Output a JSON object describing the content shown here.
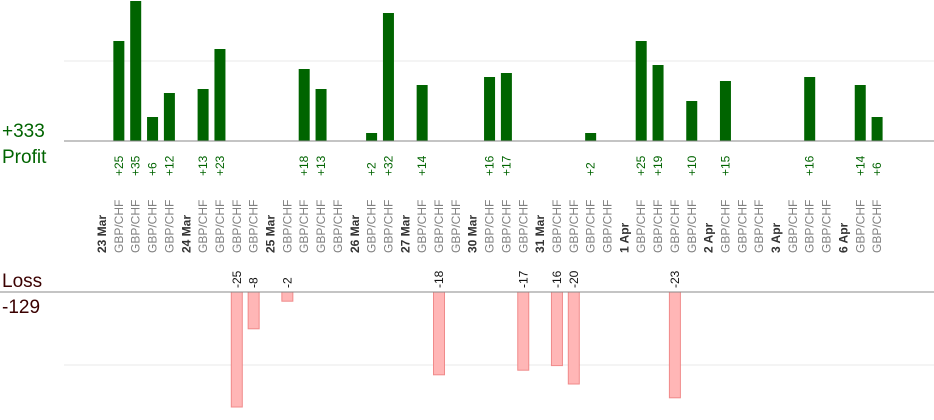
{
  "summary": {
    "profit_total": "+333",
    "profit_label": "Profit",
    "loss_label": "Loss",
    "loss_total": "-129"
  },
  "colors": {
    "profit_bar": "#006400",
    "loss_bar": "#ffb6b6",
    "profit_text": "#006400",
    "loss_text": "#3a0000",
    "axis": "#888888",
    "grid": "#e8e8e8"
  },
  "chart_data": {
    "type": "bar",
    "x": [
      "23 Mar",
      "GBP/CHF",
      "GBP/CHF",
      "GBP/CHF",
      "GBP/CHF",
      "24 Mar",
      "GBP/CHF",
      "GBP/CHF",
      "GBP/CHF",
      "GBP/CHF",
      "25 Mar",
      "GBP/CHF",
      "GBP/CHF",
      "GBP/CHF",
      "GBP/CHF",
      "26 Mar",
      "GBP/CHF",
      "GBP/CHF",
      "27 Mar",
      "GBP/CHF",
      "GBP/CHF",
      "GBP/CHF",
      "30 Mar",
      "GBP/CHF",
      "GBP/CHF",
      "GBP/CHF",
      "31 Mar",
      "GBP/CHF",
      "GBP/CHF",
      "GBP/CHF",
      "GBP/CHF",
      "1 Apr",
      "GBP/CHF",
      "GBP/CHF",
      "GBP/CHF",
      "GBP/CHF",
      "2 Apr",
      "GBP/CHF",
      "GBP/CHF",
      "GBP/CHF",
      "3 Apr",
      "GBP/CHF",
      "GBP/CHF",
      "GBP/CHF",
      "6 Apr",
      "GBP/CHF",
      "GBP/CHF"
    ],
    "kind": [
      "day",
      "ticket",
      "ticket",
      "ticket",
      "ticket",
      "day",
      "ticket",
      "ticket",
      "ticket",
      "ticket",
      "day",
      "ticket",
      "ticket",
      "ticket",
      "ticket",
      "day",
      "ticket",
      "ticket",
      "day",
      "ticket",
      "ticket",
      "ticket",
      "day",
      "ticket",
      "ticket",
      "ticket",
      "day",
      "ticket",
      "ticket",
      "ticket",
      "ticket",
      "day",
      "ticket",
      "ticket",
      "ticket",
      "ticket",
      "day",
      "ticket",
      "ticket",
      "ticket",
      "day",
      "ticket",
      "ticket",
      "ticket",
      "day",
      "ticket",
      "ticket"
    ],
    "series": [
      {
        "values": [
          null,
          25,
          35,
          6,
          12,
          null,
          13,
          23,
          null,
          null,
          null,
          null,
          18,
          13,
          null,
          null,
          2,
          32,
          null,
          14,
          null,
          null,
          null,
          16,
          17,
          null,
          null,
          null,
          null,
          2,
          null,
          null,
          25,
          19,
          null,
          10,
          null,
          15,
          null,
          null,
          null,
          null,
          16,
          null,
          null,
          14,
          6
        ]
      },
      {
        "values": [
          null,
          null,
          null,
          null,
          null,
          null,
          null,
          null,
          -25,
          -8,
          null,
          -2,
          null,
          null,
          null,
          null,
          null,
          null,
          null,
          null,
          -18,
          null,
          null,
          null,
          null,
          -17,
          null,
          -16,
          -20,
          null,
          null,
          null,
          null,
          null,
          -23,
          null,
          null,
          null,
          null,
          null,
          null,
          null,
          null,
          null,
          null,
          null,
          null
        ]
      }
    ],
    "profit_ylim": [
      0,
      20
    ],
    "loss_ylim": [
      -30,
      0
    ],
    "grid": true
  }
}
